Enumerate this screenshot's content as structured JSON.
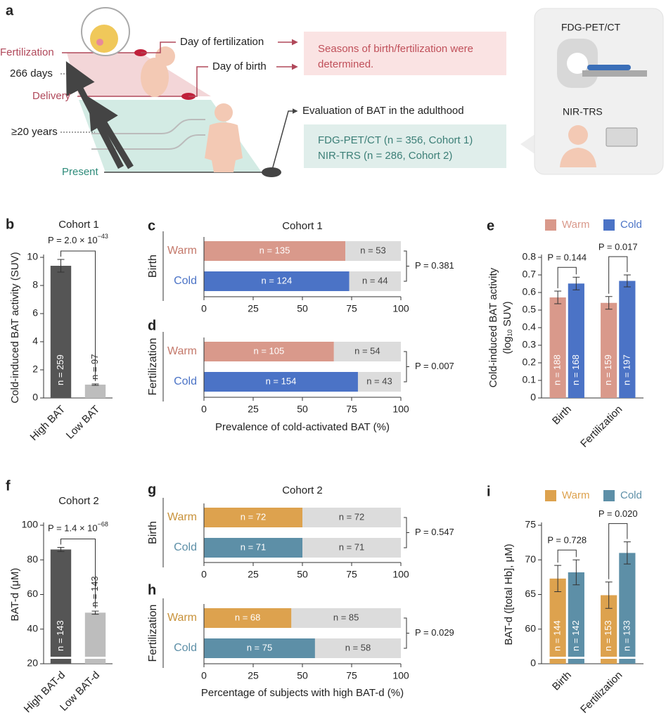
{
  "diagram": {
    "panel": "a",
    "fertilization": "Fertilization",
    "days": "266 days",
    "delivery": "Delivery",
    "years": "≥20 years",
    "present": "Present",
    "day_fertilization": "Day of fertilization",
    "day_birth": "Day of birth",
    "seasons": [
      "Seasons of birth/fertilization were",
      "determined."
    ],
    "evaluation": "Evaluation of BAT in the adulthood",
    "cohorts": [
      "FDG-PET/CT (n = 356, Cohort 1)",
      "NIR-TRS (n = 286, Cohort 2)"
    ],
    "methods": [
      "FDG-PET/CT",
      "NIR-TRS"
    ]
  },
  "chart_data": [
    {
      "panel": "b",
      "type": "bar",
      "title": "Cohort 1",
      "ylabel": "Cold-induced BAT activity (SUV)",
      "categories": [
        "High BAT",
        "Low BAT"
      ],
      "values": [
        9.4,
        0.95
      ],
      "errors": [
        0.45,
        0.05
      ],
      "colors": [
        "#555555",
        "#bdbdbd"
      ],
      "n_labels": [
        "n = 259",
        "n = 97"
      ],
      "p_label": {
        "text": "P = 2.0 × 10",
        "sup": "−43"
      },
      "ylim": [
        0,
        10
      ],
      "yticks": [
        0,
        2,
        4,
        6,
        8,
        10
      ]
    },
    {
      "panel": "c",
      "type": "stacked_barh",
      "title": "Cohort 1",
      "group": "Birth",
      "categories": [
        "Warm",
        "Cold"
      ],
      "category_colors": [
        "#c4796b",
        "#4b73c6"
      ],
      "series": [
        {
          "colors": [
            "#d9998b",
            "#4b73c6"
          ],
          "values": [
            71.8,
            73.8
          ],
          "n_labels": [
            "n = 135",
            "n = 124"
          ]
        },
        {
          "color": "#dcdcdc",
          "values": [
            28.2,
            26.2
          ],
          "n_labels": [
            "n = 53",
            "n = 44"
          ]
        }
      ],
      "p_label": "P = 0.381",
      "xlim": [
        0,
        100
      ],
      "xticks": [
        0,
        25,
        50,
        75,
        100
      ]
    },
    {
      "panel": "d",
      "type": "stacked_barh",
      "group": "Fertilization",
      "xlabel": "Prevalence of cold-activated BAT (%)",
      "categories": [
        "Warm",
        "Cold"
      ],
      "category_colors": [
        "#c4796b",
        "#4b73c6"
      ],
      "series": [
        {
          "colors": [
            "#d9998b",
            "#4b73c6"
          ],
          "values": [
            66,
            78.2
          ],
          "n_labels": [
            "n = 105",
            "n = 154"
          ]
        },
        {
          "color": "#dcdcdc",
          "values": [
            34,
            21.8
          ],
          "n_labels": [
            "n = 54",
            "n = 43"
          ]
        }
      ],
      "p_label": "P = 0.007",
      "xlim": [
        0,
        100
      ],
      "xticks": [
        0,
        25,
        50,
        75,
        100
      ]
    },
    {
      "panel": "e",
      "type": "bar",
      "ylabel": "Cold-induced BAT activity",
      "ylabel_unit": {
        "text": "(log",
        "sub": "10",
        "post": " SUV)"
      },
      "categories": [
        "Birth",
        "Fertilization"
      ],
      "series": [
        {
          "name": "Warm",
          "color": "#d9998b",
          "values": [
            0.572,
            0.541
          ],
          "errors": [
            0.036,
            0.036
          ],
          "n_labels": [
            "n = 188",
            "n = 159"
          ]
        },
        {
          "name": "Cold",
          "color": "#4b73c6",
          "values": [
            0.651,
            0.666
          ],
          "errors": [
            0.036,
            0.034
          ],
          "n_labels": [
            "n = 168",
            "n = 197"
          ]
        }
      ],
      "p_labels": [
        "P = 0.144",
        "P = 0.017"
      ],
      "ylim": [
        0,
        0.8
      ],
      "yticks": [
        0,
        0.1,
        0.2,
        0.3,
        0.4,
        0.5,
        0.6,
        0.7,
        0.8
      ],
      "legend": "top"
    },
    {
      "panel": "f",
      "type": "bar",
      "title": "Cohort 2",
      "ylabel": "BAT-d (μM)",
      "categories": [
        "High BAT-d",
        "Low BAT-d"
      ],
      "values": [
        86,
        49.5
      ],
      "errors": [
        1.2,
        0.9
      ],
      "colors": [
        "#555555",
        "#bdbdbd"
      ],
      "n_labels": [
        "n = 143",
        "n = 143"
      ],
      "p_label": {
        "text": "P = 1.4 × 10",
        "sup": "−68"
      },
      "ylim": [
        20,
        100
      ],
      "yticks": [
        20,
        40,
        60,
        80,
        100
      ],
      "axis_break": true
    },
    {
      "panel": "g",
      "type": "stacked_barh",
      "title": "Cohort 2",
      "group": "Birth",
      "categories": [
        "Warm",
        "Cold"
      ],
      "category_colors": [
        "#c8923a",
        "#5d8fa7"
      ],
      "series": [
        {
          "colors": [
            "#dda24e",
            "#5d8fa7"
          ],
          "values": [
            50,
            50
          ],
          "n_labels": [
            "n = 72",
            "n = 71"
          ]
        },
        {
          "color": "#dcdcdc",
          "values": [
            50,
            50
          ],
          "n_labels": [
            "n = 72",
            "n = 71"
          ]
        }
      ],
      "p_label": "P = 0.547",
      "xlim": [
        0,
        100
      ],
      "xticks": [
        0,
        25,
        50,
        75,
        100
      ]
    },
    {
      "panel": "h",
      "type": "stacked_barh",
      "group": "Fertilization",
      "xlabel": "Percentage of subjects with high BAT-d (%)",
      "categories": [
        "Warm",
        "Cold"
      ],
      "category_colors": [
        "#c8923a",
        "#5d8fa7"
      ],
      "series": [
        {
          "colors": [
            "#dda24e",
            "#5d8fa7"
          ],
          "values": [
            44.4,
            56.4
          ],
          "n_labels": [
            "n = 68",
            "n = 75"
          ]
        },
        {
          "color": "#dcdcdc",
          "values": [
            55.6,
            43.6
          ],
          "n_labels": [
            "n = 85",
            "n = 58"
          ]
        }
      ],
      "p_label": "P = 0.029",
      "xlim": [
        0,
        100
      ],
      "xticks": [
        0,
        25,
        50,
        75,
        100
      ]
    },
    {
      "panel": "i",
      "type": "bar",
      "ylabel": "BAT-d ([total Hb], μM)",
      "categories": [
        "Birth",
        "Fertilization"
      ],
      "series": [
        {
          "name": "Warm",
          "color": "#dda24e",
          "values": [
            67.3,
            64.9
          ],
          "errors": [
            1.9,
            1.9
          ],
          "n_labels": [
            "n = 144",
            "n = 153"
          ]
        },
        {
          "name": "Cold",
          "color": "#5d8fa7",
          "values": [
            68.2,
            71
          ],
          "errors": [
            1.8,
            1.6
          ],
          "n_labels": [
            "n = 142",
            "n = 133"
          ]
        }
      ],
      "p_labels": [
        "P = 0.728",
        "P = 0.020"
      ],
      "ylim": [
        0,
        75
      ],
      "yticks": [
        0,
        60,
        65,
        70,
        75
      ],
      "axis_break": true,
      "legend": "top"
    }
  ]
}
